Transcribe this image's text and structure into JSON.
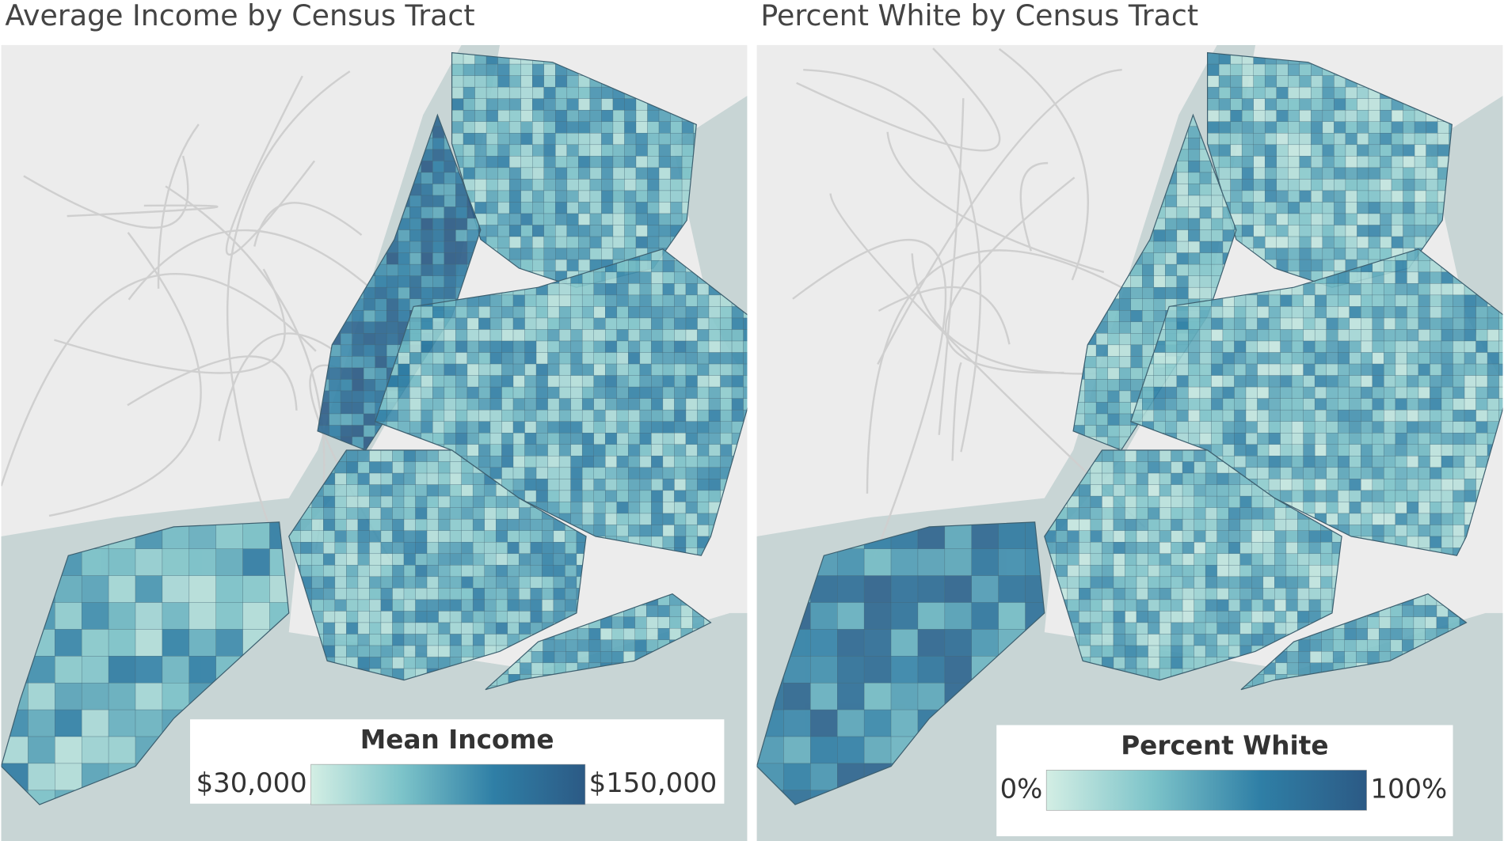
{
  "maps": [
    {
      "title": "Average Income by Census Tract",
      "legend": {
        "title": "Mean Income",
        "min": "$30,000",
        "max": "$150,000",
        "colors": [
          "#d3eee4",
          "#7cc3c9",
          "#2f7fa6",
          "#2c5a85"
        ]
      }
    },
    {
      "title": "Percent White by Census Tract",
      "legend": {
        "title": "Percent White",
        "min": "0%",
        "max": "100%",
        "colors": [
          "#d3eee4",
          "#7cc3c9",
          "#2f7fa6",
          "#2c5a85"
        ]
      }
    }
  ]
}
